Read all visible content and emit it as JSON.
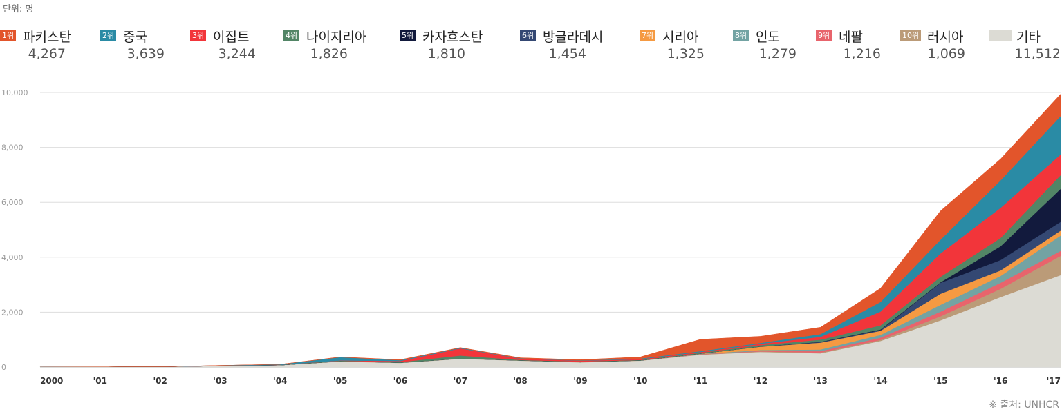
{
  "unit_label": "단위: 명",
  "source": "※ 출처: UNHCR",
  "legend": [
    {
      "rank": "1위",
      "name": "파키스탄",
      "value": "4,267",
      "color": "#e2552b"
    },
    {
      "rank": "2위",
      "name": "중국",
      "value": "3,639",
      "color": "#2a8ba5"
    },
    {
      "rank": "3위",
      "name": "이집트",
      "value": "3,244",
      "color": "#f2353a"
    },
    {
      "rank": "4위",
      "name": "나이지리아",
      "value": "1,826",
      "color": "#528566"
    },
    {
      "rank": "5위",
      "name": "카자흐스탄",
      "value": "1,810",
      "color": "#121a3d"
    },
    {
      "rank": "6위",
      "name": "방글라데시",
      "value": "1,454",
      "color": "#344873"
    },
    {
      "rank": "7위",
      "name": "시리아",
      "value": "1,325",
      "color": "#f59a42"
    },
    {
      "rank": "8위",
      "name": "인도",
      "value": "1,279",
      "color": "#73a3a3"
    },
    {
      "rank": "9위",
      "name": "네팔",
      "value": "1,216",
      "color": "#e8646c"
    },
    {
      "rank": "10위",
      "name": "러시아",
      "value": "1,069",
      "color": "#bb9b78"
    },
    {
      "rank": "",
      "name": "기타",
      "value": "11,512",
      "color": "#dcdbd4"
    }
  ],
  "chart_data": {
    "type": "area",
    "stacked": true,
    "x": [
      "2000",
      "'01",
      "'02",
      "'03",
      "'04",
      "'05",
      "'06",
      "'07",
      "'08",
      "'09",
      "'10",
      "'11",
      "'12",
      "'13",
      "'14",
      "'15",
      "'16",
      "'17"
    ],
    "yticks": [
      "0",
      "2,000",
      "4,000",
      "6,000",
      "8,000",
      "10,000"
    ],
    "ylim": [
      0,
      10000
    ],
    "grid": true,
    "series": [
      {
        "name": "기타",
        "color": "#dcdbd4",
        "values": [
          30,
          20,
          10,
          40,
          70,
          200,
          150,
          300,
          230,
          170,
          230,
          450,
          550,
          500,
          950,
          1700,
          2550,
          3350
        ]
      },
      {
        "name": "러시아",
        "color": "#bb9b78",
        "values": [
          0,
          0,
          0,
          0,
          0,
          10,
          10,
          10,
          10,
          10,
          10,
          10,
          20,
          30,
          40,
          150,
          300,
          700
        ]
      },
      {
        "name": "네팔",
        "color": "#e8646c",
        "values": [
          0,
          0,
          0,
          0,
          0,
          0,
          0,
          0,
          0,
          0,
          0,
          10,
          20,
          50,
          80,
          170,
          220,
          180
        ]
      },
      {
        "name": "인도",
        "color": "#73a3a3",
        "values": [
          0,
          0,
          0,
          0,
          0,
          0,
          0,
          0,
          0,
          0,
          0,
          10,
          30,
          60,
          100,
          250,
          250,
          560
        ]
      },
      {
        "name": "시리아",
        "color": "#f59a42",
        "values": [
          0,
          0,
          0,
          0,
          0,
          0,
          0,
          0,
          0,
          0,
          0,
          10,
          120,
          250,
          150,
          400,
          200,
          180
        ]
      },
      {
        "name": "방글라데시",
        "color": "#344873",
        "values": [
          0,
          0,
          0,
          0,
          0,
          0,
          0,
          0,
          0,
          0,
          0,
          0,
          10,
          20,
          30,
          400,
          380,
          320
        ]
      },
      {
        "name": "카자흐스탄",
        "color": "#121a3d",
        "values": [
          0,
          0,
          0,
          0,
          0,
          0,
          0,
          0,
          0,
          0,
          0,
          0,
          0,
          10,
          20,
          20,
          500,
          1200
        ]
      },
      {
        "name": "나이지리아",
        "color": "#528566",
        "values": [
          0,
          0,
          0,
          0,
          10,
          20,
          20,
          110,
          20,
          20,
          20,
          30,
          50,
          80,
          150,
          200,
          300,
          500
        ]
      },
      {
        "name": "이집트",
        "color": "#f2353a",
        "values": [
          0,
          0,
          0,
          0,
          0,
          10,
          40,
          260,
          50,
          30,
          30,
          30,
          50,
          100,
          500,
          850,
          1100,
          750
        ]
      },
      {
        "name": "중국",
        "color": "#2a8ba5",
        "values": [
          0,
          0,
          0,
          20,
          20,
          120,
          30,
          20,
          10,
          10,
          20,
          30,
          30,
          100,
          350,
          500,
          1000,
          1400
        ]
      },
      {
        "name": "파키스탄",
        "color": "#e2552b",
        "values": [
          0,
          0,
          0,
          0,
          0,
          10,
          20,
          10,
          20,
          30,
          60,
          430,
          240,
          250,
          500,
          1050,
          780,
          800
        ]
      }
    ]
  }
}
